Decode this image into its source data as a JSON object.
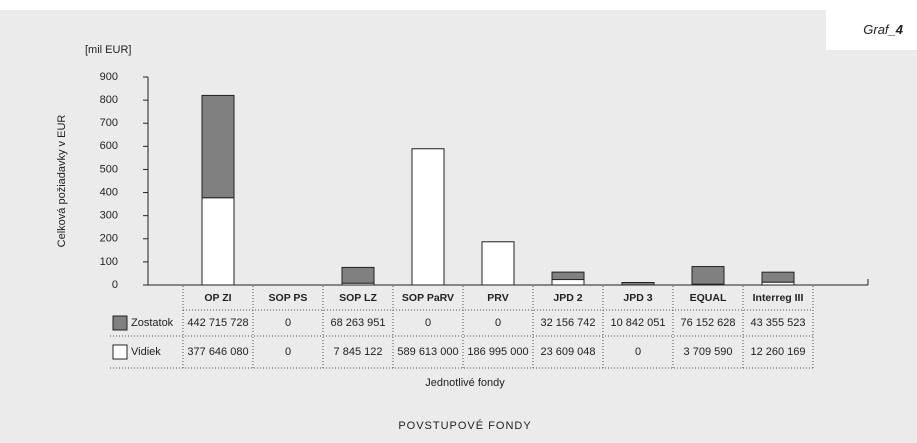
{
  "chart_data": {
    "type": "stacked_bar",
    "figure_label": [
      "Graf_",
      "4"
    ],
    "unit_label": "[mil EUR]",
    "y_label": "Celková požiadavky v EUR",
    "x_label": "Jednotlivé fondy",
    "footer": "POVSTUPOVÉ FONDY",
    "categories": [
      "OP ZI",
      "SOP PS",
      "SOP LZ",
      "SOP PaRV",
      "PRV",
      "JPD 2",
      "JPD 3",
      "EQUAL",
      "Interreg III"
    ],
    "series": [
      {
        "name": "Zostatok",
        "color": "#808080",
        "values": [
          442.715728,
          0,
          68.263951,
          0,
          0,
          32.156742,
          10.842051,
          76.152628,
          43.355523
        ],
        "value_labels": [
          "442 715 728",
          "0",
          "68 263 951",
          "0",
          "0",
          "32 156 742",
          "10 842 051",
          "76 152 628",
          "43 355 523"
        ]
      },
      {
        "name": "Vidiek",
        "color": "#ffffff",
        "values": [
          377.64608,
          0,
          7.845122,
          589.613,
          186.995,
          23.609048,
          0,
          3.70959,
          12.260169
        ],
        "value_labels": [
          "377 646 080",
          "0",
          "7 845 122",
          "589 613 000",
          "186 995 000",
          "23 609 048",
          "0",
          "3 709 590",
          "12 260 169"
        ]
      }
    ],
    "ylim": [
      0,
      900
    ],
    "yticks": [
      0,
      100,
      200,
      300,
      400,
      500,
      600,
      700,
      800,
      900
    ]
  }
}
